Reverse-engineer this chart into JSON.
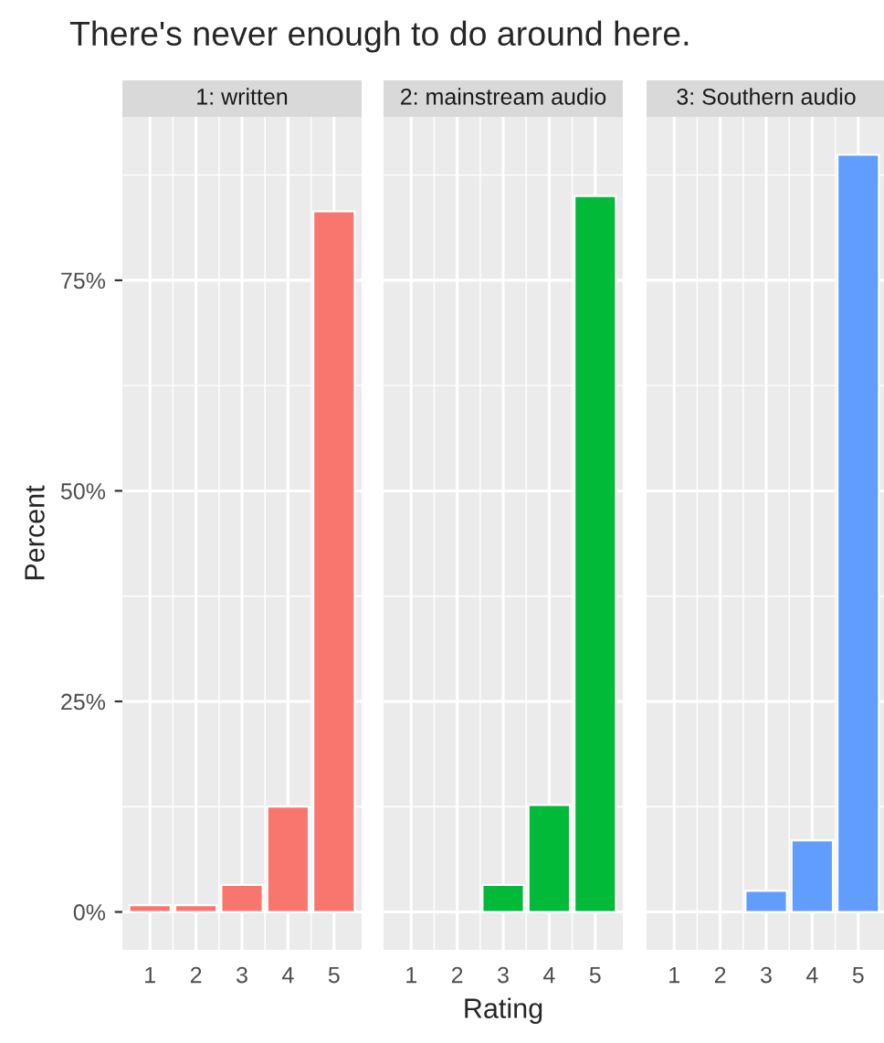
{
  "chart_data": [
    {
      "type": "bar",
      "title": "1: written",
      "ylabel": "Percent",
      "annotations": [
        "There's never enough to do around here."
      ],
      "categories": [
        "1",
        "2",
        "3",
        "4",
        "5"
      ],
      "values": [
        0.8,
        0.8,
        3.2,
        12.5,
        83.2
      ],
      "color": "#f8766d",
      "ylim": [
        -4.5,
        94.4
      ],
      "yticks": [
        {
          "value": 0,
          "label": "0%"
        },
        {
          "value": 25,
          "label": "25%"
        },
        {
          "value": 50,
          "label": "50%"
        },
        {
          "value": 75,
          "label": "75%"
        }
      ],
      "grid": true
    },
    {
      "type": "bar",
      "title": "2: mainstream audio",
      "xlabel": "Rating",
      "categories": [
        "1",
        "2",
        "3",
        "4",
        "5"
      ],
      "values": [
        null,
        null,
        3.2,
        12.7,
        85.0
      ],
      "color": "#00ba38",
      "ylim": [
        -4.5,
        94.4
      ],
      "yticks": [
        0,
        25,
        50,
        75
      ],
      "grid": true,
      "tick_labels": "x"
    },
    {
      "type": "bar",
      "title": "3: Southern audio",
      "categories": [
        "1",
        "2",
        "3",
        "4",
        "5"
      ],
      "values": [
        null,
        null,
        2.5,
        8.5,
        89.9
      ],
      "color": "#619cff",
      "ylim": [
        -4.5,
        94.4
      ],
      "yticks": [
        0,
        25,
        50,
        75
      ],
      "grid": true,
      "tick_labels": "x"
    }
  ]
}
